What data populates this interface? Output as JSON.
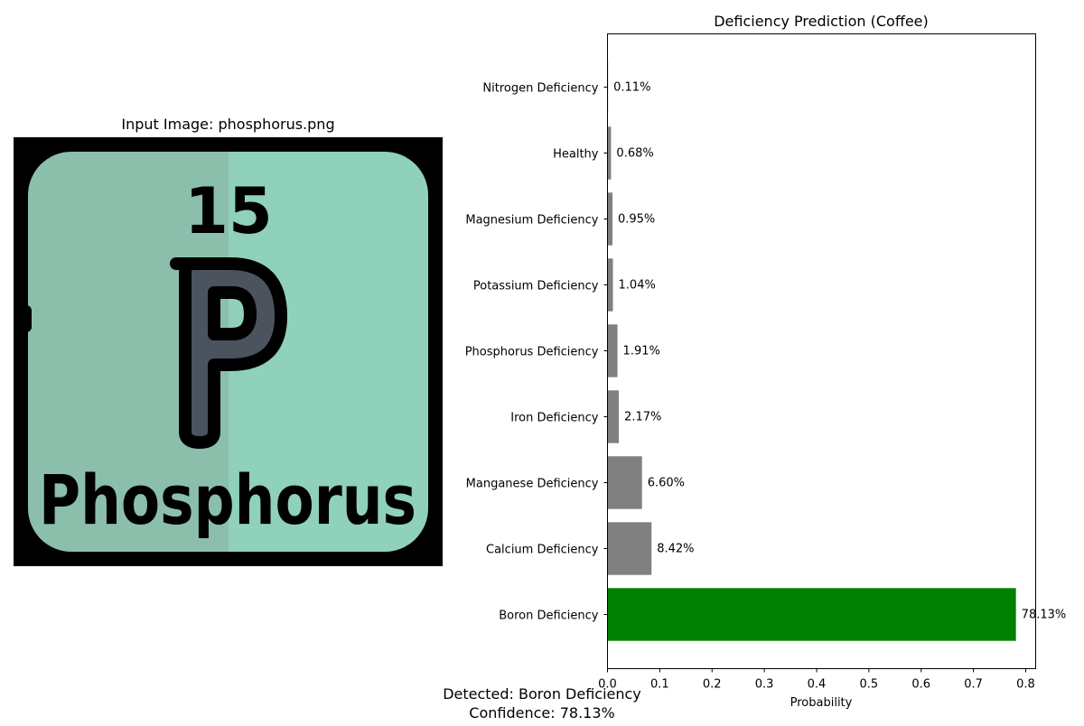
{
  "input_panel": {
    "title": "Input Image: phosphorus.png",
    "image_label": "Phosphorus",
    "image_symbol": "P",
    "image_number": "15"
  },
  "chart_data": {
    "type": "bar",
    "orientation": "horizontal",
    "title": "Deficiency Prediction (Coffee)",
    "xlabel": "Probability",
    "ylabel": "",
    "xlim": [
      0,
      0.82
    ],
    "xticks": [
      0.0,
      0.1,
      0.2,
      0.3,
      0.4,
      0.5,
      0.6,
      0.7,
      0.8
    ],
    "xtick_labels": [
      "0.0",
      "0.1",
      "0.2",
      "0.3",
      "0.4",
      "0.5",
      "0.6",
      "0.7",
      "0.8"
    ],
    "categories": [
      "Boron Deficiency",
      "Calcium Deficiency",
      "Manganese Deficiency",
      "Iron Deficiency",
      "Phosphorus Deficiency",
      "Potassium Deficiency",
      "Magnesium Deficiency",
      "Healthy",
      "Nitrogen Deficiency"
    ],
    "values": [
      0.7813,
      0.0842,
      0.066,
      0.0217,
      0.0191,
      0.0104,
      0.0095,
      0.0068,
      0.0011
    ],
    "data_labels": [
      "78.13%",
      "8.42%",
      "6.60%",
      "2.17%",
      "1.91%",
      "1.04%",
      "0.95%",
      "0.68%",
      "0.11%"
    ],
    "bar_colors": [
      "#008000",
      "#808080",
      "#808080",
      "#808080",
      "#808080",
      "#808080",
      "#808080",
      "#808080",
      "#808080"
    ],
    "grid": false,
    "legend": "none"
  },
  "caption": {
    "line1": "Detected: Boron Deficiency",
    "line2": "Confidence: 78.13%"
  },
  "colors": {
    "image_bg": "#000000",
    "tile_left": "#8BBFAC",
    "tile_right": "#8FD1BA",
    "glyph_fill": "#4A535E"
  }
}
